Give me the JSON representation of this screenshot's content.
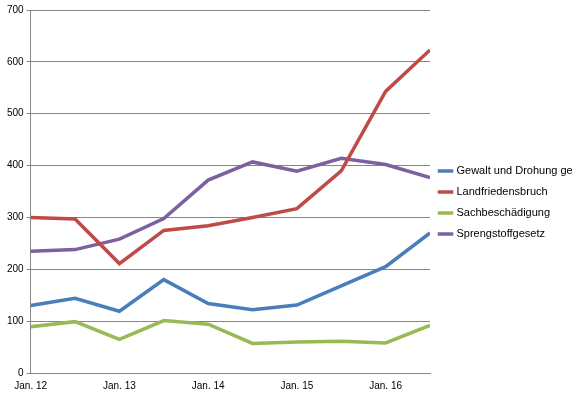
{
  "chart_data": {
    "type": "line",
    "categories": [
      "Jan. 12",
      null,
      "Jan. 13",
      null,
      "Jan. 14",
      null,
      "Jan. 15",
      null,
      "Jan. 16",
      null
    ],
    "series": [
      {
        "name": "Gewalt und Drohung gegen Beamte",
        "color": "#4a7ebb",
        "values": [
          130,
          144,
          119,
          180,
          134,
          122,
          131,
          168,
          205,
          270
        ]
      },
      {
        "name": "Landfriedensbruch",
        "color": "#be4b48",
        "values": [
          300,
          297,
          211,
          275,
          284,
          300,
          317,
          390,
          543,
          623
        ]
      },
      {
        "name": "Sachbeschädigung",
        "color": "#98b954",
        "values": [
          89,
          99,
          65,
          101,
          94,
          57,
          60,
          61,
          58,
          92
        ]
      },
      {
        "name": "Sprengstoffgesetz",
        "color": "#7d60a0",
        "values": [
          235,
          238,
          258,
          298,
          372,
          407,
          389,
          414,
          402,
          377
        ]
      }
    ],
    "ylim": [
      0,
      700
    ],
    "yticks": [
      0,
      100,
      200,
      300,
      400,
      500,
      600,
      700
    ],
    "grid": true,
    "legend": "right"
  }
}
